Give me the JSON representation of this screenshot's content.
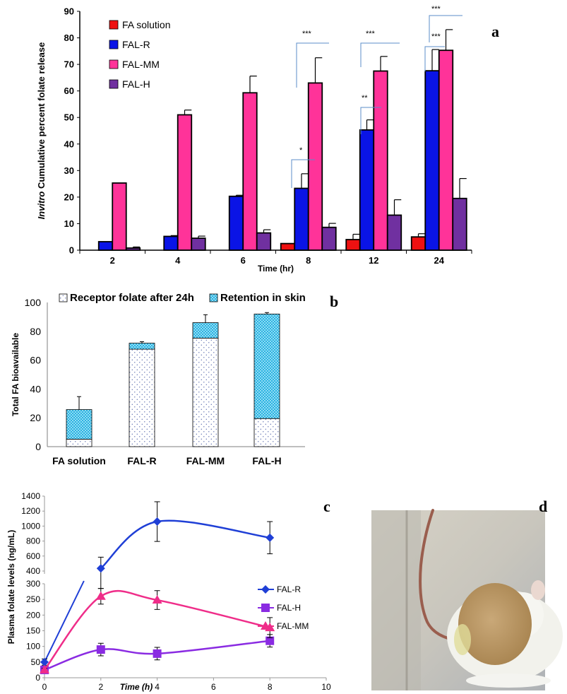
{
  "panels": {
    "a": "a",
    "b": "b",
    "c": "c",
    "d": "d"
  },
  "chart_data": [
    {
      "id": "a",
      "type": "bar",
      "ylabel_italic": "Invitro",
      "ylabel_rest": " Cumulative percent folate release",
      "xlabel": "Time (hr)",
      "ylim": [
        0,
        90
      ],
      "yticks": [
        0,
        10,
        20,
        30,
        40,
        50,
        60,
        70,
        80,
        90
      ],
      "categories": [
        "2",
        "4",
        "6",
        "8",
        "12",
        "24"
      ],
      "legend_position": "top-left",
      "series": [
        {
          "name": "FA solution",
          "color": "#ee1111",
          "values": [
            0,
            0,
            0,
            2.5,
            4,
            5
          ],
          "errors": [
            0,
            0,
            0,
            0,
            2,
            1.2
          ]
        },
        {
          "name": "FAL-R",
          "color": "#0a14e6",
          "values": [
            3.2,
            5.2,
            20.3,
            23.3,
            45.3,
            67.6
          ],
          "errors": [
            0,
            0.3,
            0.4,
            5.5,
            3.8,
            8
          ]
        },
        {
          "name": "FAL-MM",
          "color": "#ff3399",
          "values": [
            25.3,
            51,
            59.3,
            63,
            67.5,
            75.3
          ],
          "errors": [
            0,
            1.8,
            6.3,
            9.5,
            5.5,
            7.8
          ]
        },
        {
          "name": "FAL-H",
          "color": "#7030a0",
          "values": [
            0.8,
            4.5,
            6.5,
            8.6,
            13.2,
            19.5
          ],
          "errors": [
            0.4,
            0.8,
            1.2,
            1.5,
            5.8,
            7.5
          ]
        }
      ],
      "annotations": [
        {
          "text": "*",
          "category": "8"
        },
        {
          "text": "***",
          "category": "8"
        },
        {
          "text": "**",
          "category": "12"
        },
        {
          "text": "***",
          "category": "12"
        },
        {
          "text": "***",
          "category": "24"
        },
        {
          "text": "***",
          "category": "24"
        }
      ]
    },
    {
      "id": "b",
      "type": "bar",
      "stacked": true,
      "ylabel": "Total FA bioavailable",
      "ylim": [
        0,
        100
      ],
      "yticks": [
        0,
        20,
        40,
        60,
        80,
        100
      ],
      "categories": [
        "FA solution",
        "FAL-R",
        "FAL-MM",
        "FAL-H"
      ],
      "legend_position": "top",
      "series": [
        {
          "name": "Receptor folate after 24h",
          "pattern": "dots",
          "values": [
            5.2,
            67.6,
            75.3,
            19.5
          ]
        },
        {
          "name": "Retention in skin",
          "pattern": "cyan-checker",
          "values": [
            20.5,
            4.2,
            10.7,
            72.5
          ],
          "errors_total": [
            9,
            1,
            5.5,
            1
          ]
        }
      ]
    },
    {
      "id": "c",
      "type": "line",
      "broken_axis": true,
      "ylabel": "Plasma folate  levels (ng/mL)",
      "xlabel": "Time (h)",
      "xlim": [
        0,
        10
      ],
      "xticks": [
        0,
        2,
        4,
        6,
        8,
        10
      ],
      "upper_yticks": [
        400,
        600,
        800,
        1000,
        1200,
        1400
      ],
      "lower_yticks": [
        0,
        50,
        100,
        150,
        200,
        250,
        300
      ],
      "legend_position": "right",
      "series": [
        {
          "name": "FAL-R",
          "color": "#1f3fd6",
          "marker": "diamond",
          "x": [
            0,
            2,
            4,
            8
          ],
          "y": [
            50,
            435,
            1060,
            845
          ],
          "err": [
            10,
            150,
            265,
            215
          ]
        },
        {
          "name": "FAL-H",
          "color": "#8a2be2",
          "marker": "square",
          "x": [
            0,
            2,
            4,
            8
          ],
          "y": [
            25,
            90,
            77,
            118
          ],
          "err": [
            5,
            20,
            20,
            20
          ]
        },
        {
          "name": "FAL-MM",
          "color": "#ef2d89",
          "marker": "triangle",
          "x": [
            0,
            2,
            4,
            8
          ],
          "y": [
            25,
            260,
            248,
            160
          ],
          "err": [
            5,
            25,
            30,
            32
          ]
        }
      ]
    }
  ]
}
